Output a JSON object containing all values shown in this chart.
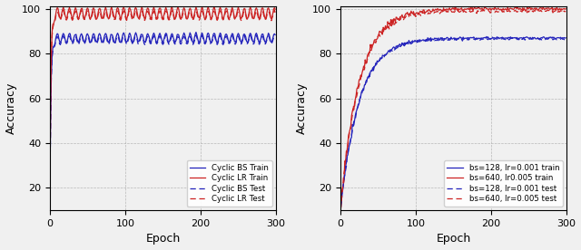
{
  "epochs": 300,
  "ylim": [
    10,
    101
  ],
  "xlim": [
    0,
    300
  ],
  "yticks": [
    20,
    40,
    60,
    80,
    100
  ],
  "xticks": [
    0,
    100,
    200,
    300
  ],
  "xlabel": "Epoch",
  "ylabel": "Accuracy",
  "left_legend": [
    {
      "label": "Cyclic BS Train",
      "color": "#2222bb",
      "linestyle": "solid"
    },
    {
      "label": "Cyclic LR Train",
      "color": "#cc2222",
      "linestyle": "solid"
    },
    {
      "label": "Cyclic BS Test",
      "color": "#2222bb",
      "linestyle": "dashed"
    },
    {
      "label": "Cyclic LR Test",
      "color": "#cc2222",
      "linestyle": "dashed"
    }
  ],
  "right_legend": [
    {
      "label": "bs=128, lr=0.001 train",
      "color": "#2222bb",
      "linestyle": "solid"
    },
    {
      "label": "bs=640, lr0.005 train",
      "color": "#cc2222",
      "linestyle": "solid"
    },
    {
      "label": "bs=128, lr=0.001 test",
      "color": "#2222bb",
      "linestyle": "dashed"
    },
    {
      "label": "bs=640, lr=0.005 test",
      "color": "#cc2222",
      "linestyle": "dashed"
    }
  ],
  "background_color": "#f0f0f0"
}
